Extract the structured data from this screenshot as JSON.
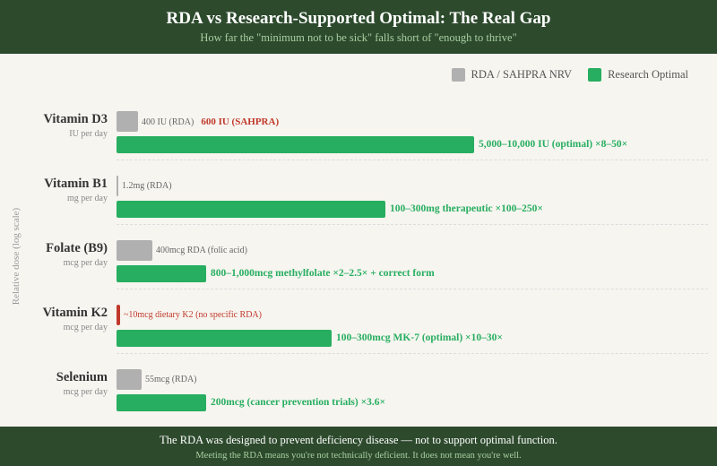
{
  "header": {
    "title": "RDA vs Research-Supported Optimal: The Real Gap",
    "subtitle": "How far the \"minimum not to be sick\" falls short of \"enough to thrive\""
  },
  "footer": {
    "line1": "The RDA was designed to prevent deficiency disease — not to support optimal function.",
    "line2": "Meeting the RDA means you're not technically deficient. It does not mean you're well."
  },
  "chart_data": {
    "type": "bar",
    "orientation": "horizontal",
    "scale": "log",
    "ylabel": "Relative dose (log scale)",
    "legend": {
      "position": "top-right",
      "entries": [
        {
          "name": "RDA / SAHPRA NRV",
          "color": "#b0b0b0"
        },
        {
          "name": "Research Optimal",
          "color": "#27ae60"
        }
      ]
    },
    "rows": [
      {
        "name": "Vitamin D3",
        "unit": "IU per day",
        "rda": 400,
        "rda_label": "400 IU (RDA)",
        "rda_label2": "600 IU (SAHPRA)",
        "optimal": 7500,
        "optimal_label": "5,000–10,000 IU (optimal) ×8–50×",
        "rda_color": "#b0b0b0"
      },
      {
        "name": "Vitamin B1",
        "unit": "mg per day",
        "rda": 1.2,
        "rda_label": "1.2mg (RDA)",
        "optimal": 200,
        "optimal_label": "100–300mg therapeutic ×100–250×",
        "rda_color": "#b0b0b0"
      },
      {
        "name": "Folate (B9)",
        "unit": "mcg per day",
        "rda": 400,
        "rda_label": "400mcg RDA (folic acid)",
        "optimal": 900,
        "optimal_label": "800–1,000mcg methylfolate ×2–2.5× + correct form",
        "rda_color": "#b0b0b0"
      },
      {
        "name": "Vitamin K2",
        "unit": "mcg per day",
        "rda": 10,
        "rda_label": "~10mcg dietary K2 (no specific RDA)",
        "optimal": 200,
        "optimal_label": "100–300mcg MK-7 (optimal) ×10–30×",
        "rda_color": "#c0392b"
      },
      {
        "name": "Selenium",
        "unit": "mcg per day",
        "rda": 55,
        "rda_label": "55mcg (RDA)",
        "optimal": 200,
        "optimal_label": "200mcg (cancer prevention trials) ×3.6×",
        "rda_color": "#b0b0b0"
      }
    ]
  }
}
